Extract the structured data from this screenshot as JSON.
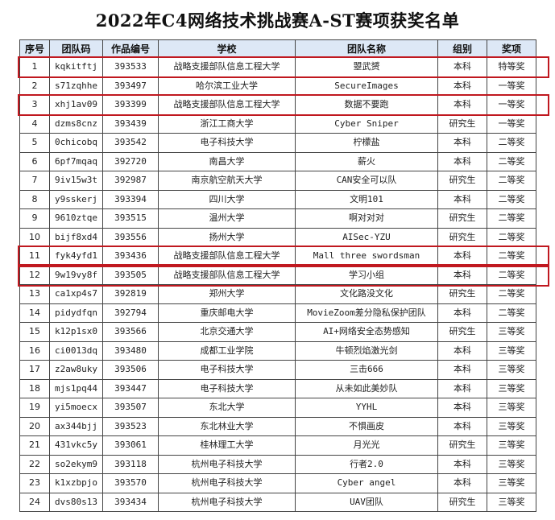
{
  "title": "2022年C4网络技术挑战赛A-ST赛项获奖名单",
  "headers": [
    "序号",
    "团队码",
    "作品编号",
    "学校",
    "团队名称",
    "组别",
    "奖项"
  ],
  "rows": [
    [
      "1",
      "kqkitftj",
      "393533",
      "战略支援部队信息工程大学",
      "曌武赟",
      "本科",
      "特等奖"
    ],
    [
      "2",
      "s71zqhhe",
      "393497",
      "哈尔滨工业大学",
      "SecureImages",
      "本科",
      "一等奖"
    ],
    [
      "3",
      "xhj1av09",
      "393399",
      "战略支援部队信息工程大学",
      "数据不要跑",
      "本科",
      "一等奖"
    ],
    [
      "4",
      "dzms8cnz",
      "393439",
      "浙江工商大学",
      "Cyber Sniper",
      "研究生",
      "一等奖"
    ],
    [
      "5",
      "0chicobq",
      "393542",
      "电子科技大学",
      "柠檬盐",
      "本科",
      "二等奖"
    ],
    [
      "6",
      "6pf7mqaq",
      "392720",
      "南昌大学",
      "薪火",
      "本科",
      "二等奖"
    ],
    [
      "7",
      "9iv15w3t",
      "392987",
      "南京航空航天大学",
      "CAN安全可以队",
      "研究生",
      "二等奖"
    ],
    [
      "8",
      "y9sskerj",
      "393394",
      "四川大学",
      "文明101",
      "本科",
      "二等奖"
    ],
    [
      "9",
      "9610ztqe",
      "393515",
      "温州大学",
      "啊对对对",
      "研究生",
      "二等奖"
    ],
    [
      "10",
      "bijf8xd4",
      "393556",
      "扬州大学",
      "AISec-YZU",
      "研究生",
      "二等奖"
    ],
    [
      "11",
      "fyk4yfd1",
      "393436",
      "战略支援部队信息工程大学",
      "Mall three swordsman",
      "本科",
      "二等奖"
    ],
    [
      "12",
      "9w19vy8f",
      "393505",
      "战略支援部队信息工程大学",
      "学习小组",
      "本科",
      "二等奖"
    ],
    [
      "13",
      "ca1xp4s7",
      "392819",
      "郑州大学",
      "文化路没文化",
      "研究生",
      "二等奖"
    ],
    [
      "14",
      "pidydfqn",
      "392794",
      "重庆邮电大学",
      "MovieZoom差分隐私保护团队",
      "本科",
      "二等奖"
    ],
    [
      "15",
      "k12p1sx0",
      "393566",
      "北京交通大学",
      "AI+网络安全态势感知",
      "研究生",
      "三等奖"
    ],
    [
      "16",
      "ci0013dq",
      "393480",
      "成都工业学院",
      "牛顿烈焰激光剑",
      "本科",
      "三等奖"
    ],
    [
      "17",
      "z2aw8uky",
      "393506",
      "电子科技大学",
      "三击666",
      "本科",
      "三等奖"
    ],
    [
      "18",
      "mjs1pq44",
      "393447",
      "电子科技大学",
      "从未如此美妙队",
      "本科",
      "三等奖"
    ],
    [
      "19",
      "yi5moecx",
      "393507",
      "东北大学",
      "YYHL",
      "本科",
      "三等奖"
    ],
    [
      "20",
      "ax344bjj",
      "393523",
      "东北林业大学",
      "不惧画皮",
      "本科",
      "三等奖"
    ],
    [
      "21",
      "431vkc5y",
      "393061",
      "桂林理工大学",
      "月光光",
      "研究生",
      "三等奖"
    ],
    [
      "22",
      "so2ekym9",
      "393118",
      "杭州电子科技大学",
      "行者2.0",
      "本科",
      "三等奖"
    ],
    [
      "23",
      "k1xzbpjo",
      "393570",
      "杭州电子科技大学",
      "Cyber angel",
      "本科",
      "三等奖"
    ],
    [
      "24",
      "dvs80s13",
      "393434",
      "杭州电子科技大学",
      "UAV团队",
      "研究生",
      "三等奖"
    ]
  ],
  "highlighted_rows": [
    1,
    3,
    11,
    12
  ],
  "colors": {
    "highlight_border": "#c0181f",
    "header_bg": "#dde8f6"
  }
}
